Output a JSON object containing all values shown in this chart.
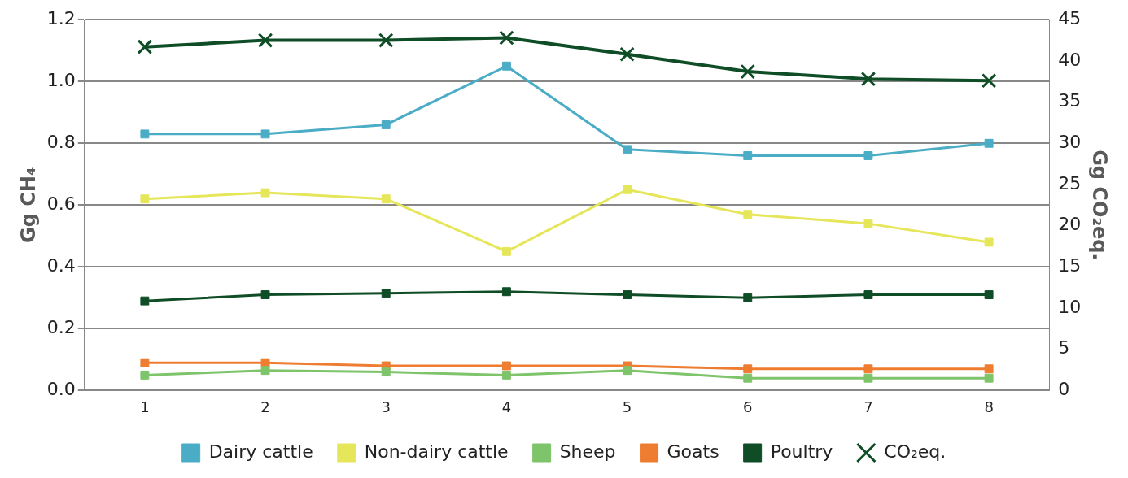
{
  "chart_data": {
    "type": "line",
    "ylabel": "Gg CH₄",
    "y2label": "Gg CO₂eq.",
    "categories": [
      "1",
      "2",
      "3",
      "4",
      "5",
      "6",
      "7",
      "8"
    ],
    "ylim": [
      0,
      1.2
    ],
    "yticks": [
      {
        "value": 0,
        "label": "0.0"
      },
      {
        "value": 0.2,
        "label": "0.2"
      },
      {
        "value": 0.4,
        "label": "0.4"
      },
      {
        "value": 0.6,
        "label": "0.6"
      },
      {
        "value": 0.8,
        "label": "0.8"
      },
      {
        "value": 1,
        "label": "1.0"
      },
      {
        "value": 1.2,
        "label": "1.2"
      }
    ],
    "y2lim": [
      0,
      45
    ],
    "y2ticks": [
      0,
      5,
      10,
      15,
      20,
      25,
      30,
      35,
      40,
      45
    ],
    "grid": "y",
    "legend": "bottom",
    "marker": "square",
    "series": [
      {
        "name": "Dairy cattle",
        "color": "#4bacc6",
        "values": [
          0.83,
          0.83,
          0.86,
          1.05,
          0.78,
          0.76,
          0.76,
          0.8
        ]
      },
      {
        "name": "Non-dairy cattle",
        "color": "#e6e65a",
        "values": [
          0.62,
          0.64,
          0.62,
          0.45,
          0.65,
          0.57,
          0.54,
          0.48
        ]
      },
      {
        "name": "Sheep",
        "color": "#7ec46a",
        "values": [
          0.05,
          0.065,
          0.06,
          0.05,
          0.065,
          0.04,
          0.04,
          0.04
        ]
      },
      {
        "name": "Goats",
        "color": "#ee7d31",
        "values": [
          0.09,
          0.09,
          0.08,
          0.08,
          0.08,
          0.07,
          0.07,
          0.07
        ]
      },
      {
        "name": "Poultry",
        "color": "#0f4d26",
        "values": [
          0.29,
          0.31,
          0.315,
          0.32,
          0.31,
          0.3,
          0.31,
          0.31
        ]
      },
      {
        "name": "CO₂eq.",
        "color": "#0f4d26",
        "axis": "y2",
        "marker": "cross",
        "values": [
          41.7,
          42.5,
          42.5,
          42.8,
          40.8,
          38.7,
          37.8,
          37.6
        ]
      }
    ]
  }
}
